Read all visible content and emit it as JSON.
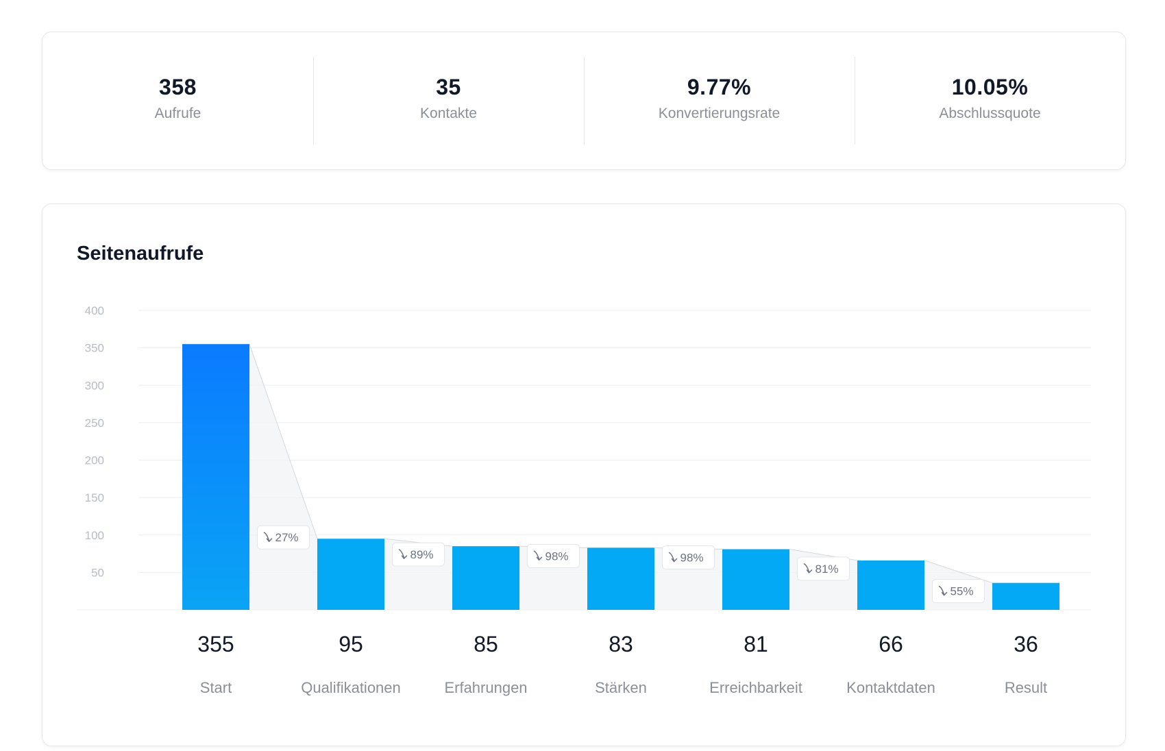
{
  "stats": [
    {
      "value": "358",
      "label": "Aufrufe"
    },
    {
      "value": "35",
      "label": "Kontakte"
    },
    {
      "value": "9.77%",
      "label": "Konvertierungsrate"
    },
    {
      "value": "10.05%",
      "label": "Abschlussquote"
    }
  ],
  "chart_data": {
    "type": "bar",
    "title": "Seitenaufrufe",
    "categories": [
      "Start",
      "Qualifikationen",
      "Erfahrungen",
      "Stärken",
      "Erreichbarkeit",
      "Kontaktdaten",
      "Result"
    ],
    "values": [
      355,
      95,
      85,
      83,
      81,
      66,
      36
    ],
    "value_labels": [
      "355",
      "95",
      "85",
      "83",
      "81",
      "66",
      "36"
    ],
    "conversion_labels": [
      "27%",
      "89%",
      "98%",
      "98%",
      "81%",
      "55%"
    ],
    "conversion_icon": "arrow-down-right-icon",
    "ylim": [
      0,
      400
    ],
    "yticks": [
      50,
      100,
      150,
      200,
      250,
      300,
      350,
      400
    ],
    "ytick_labels": [
      "50",
      "100",
      "150",
      "200",
      "250",
      "300",
      "350",
      "400"
    ],
    "grid": true,
    "xlabel": "",
    "ylabel": "",
    "colors": {
      "first_bar_top": "#0a7bff",
      "first_bar_bottom": "#0aa4f5",
      "bar": "#03a9f4",
      "grid": "#eceef1",
      "connector_fill": "#f1f2f4",
      "connector_line": "#d6d8dc"
    }
  }
}
